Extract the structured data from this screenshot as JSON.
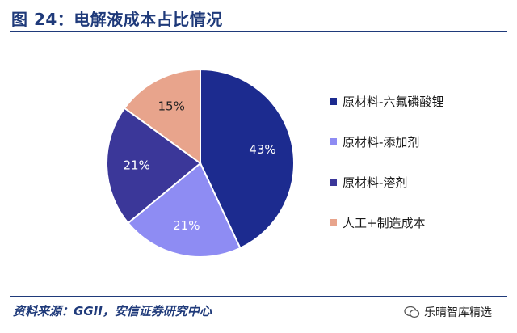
{
  "title": "图 24：电解液成本占比情况",
  "source": "资料来源：GGII，安信证券研究中心",
  "watermark": "乐晴智库精选",
  "chart_data": {
    "type": "pie",
    "series": [
      {
        "name": "原材料-六氟磷酸锂",
        "value": 43,
        "label": "43%",
        "color": "#1c2b8f"
      },
      {
        "name": "原材料-添加剂",
        "value": 21,
        "label": "21%",
        "color": "#8e8cf3"
      },
      {
        "name": "原材料-溶剂",
        "value": 21,
        "label": "21%",
        "color": "#3b3799"
      },
      {
        "name": "人工+制造成本",
        "value": 15,
        "label": "15%",
        "color": "#e8a48c"
      }
    ],
    "legend_position": "right"
  }
}
